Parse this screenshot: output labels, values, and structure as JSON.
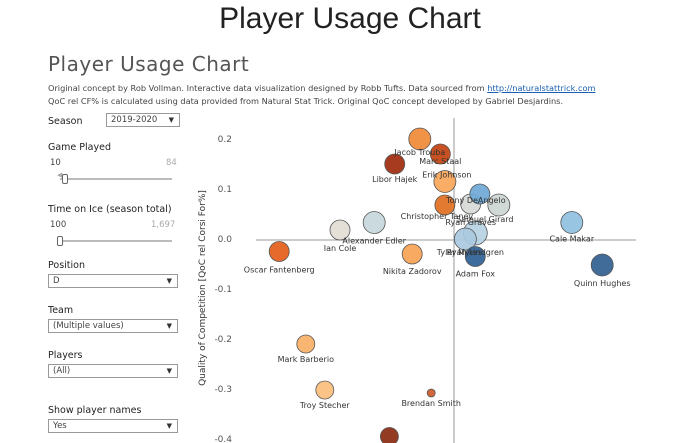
{
  "page_title": "Player Usage Chart",
  "viz_title": "Player Usage Chart",
  "credits": {
    "line1_prefix": "Original concept by Rob Vollman.  Interactive data visualization designed by Robb Tufts.  Data sourced from ",
    "line1_link": "http://naturalstattrick.com",
    "line2": "QoC rel CF% is calculated using data provided from Natural Stat Trick.  Original QoC concept developed by Gabriel Desjardins."
  },
  "controls": {
    "season": {
      "label": "Season",
      "value": "2019-2020"
    },
    "games_played": {
      "label": "Game Played",
      "min_value": "10",
      "max_value": "84"
    },
    "time_on_ice": {
      "label": "Time on Ice (season total)",
      "min_value": "100",
      "max_value": "1,697"
    },
    "position": {
      "label": "Position",
      "value": "D"
    },
    "team": {
      "label": "Team",
      "value": "(Multiple values)"
    },
    "players": {
      "label": "Players",
      "value": "(All)"
    },
    "show_names": {
      "label": "Show player names",
      "value": "Yes"
    }
  },
  "icons": {
    "dropdown": "chevron-down-icon"
  },
  "chart_data": {
    "type": "scatter",
    "ylabel": "Quality of Competition [QoC rel Corsi For%]",
    "ylim": [
      -0.4,
      0.25
    ],
    "yticks": [
      "0.2",
      "0.1",
      "0.0",
      "-0.1",
      "-0.2",
      "-0.3",
      "-0.4"
    ],
    "points": [
      {
        "name": "Jacob Trouba",
        "x": -0.45,
        "y": 0.2,
        "color": "#f08a36",
        "size": 11
      },
      {
        "name": "Libor Hajek",
        "x": -0.78,
        "y": 0.15,
        "color": "#9e2a0d",
        "size": 10
      },
      {
        "name": "Marc Staal",
        "x": -0.18,
        "y": 0.17,
        "color": "#c2420f",
        "size": 10
      },
      {
        "name": "Erik Johnson",
        "x": -0.12,
        "y": 0.115,
        "color": "#f8a65a",
        "size": 11
      },
      {
        "name": "Christopher Tanev",
        "x": -0.12,
        "y": 0.068,
        "color": "#e0701f",
        "size": 10
      },
      {
        "name": "Ryan Graves",
        "x": 0.22,
        "y": 0.07,
        "color": "#d6d9d6",
        "size": 10
      },
      {
        "name": "Tony DeAngelo",
        "x": 0.34,
        "y": 0.09,
        "color": "#6ea8d6",
        "size": 10
      },
      {
        "name": "Samuel Girard",
        "x": 0.59,
        "y": 0.068,
        "color": "#cdd6d2",
        "size": 11
      },
      {
        "name": "Alexander Edler",
        "x": -1.05,
        "y": 0.033,
        "color": "#c7d7db",
        "size": 11
      },
      {
        "name": "Ian Cole",
        "x": -1.5,
        "y": 0.018,
        "color": "#e2ddd4",
        "size": 10
      },
      {
        "name": "Ryan Lindgren",
        "x": 0.28,
        "y": 0.012,
        "color": "#b7d3e3",
        "size": 12
      },
      {
        "name": "Tyler Myers",
        "x": 0.15,
        "y": 0.0,
        "color": "#a9c9df",
        "size": 11
      },
      {
        "name": "Cale Makar",
        "x": 1.55,
        "y": 0.033,
        "color": "#8ec0df",
        "size": 11
      },
      {
        "name": "Oscar Fantenberg",
        "x": -2.3,
        "y": -0.025,
        "color": "#e35d1a",
        "size": 10
      },
      {
        "name": "Nikita Zadorov",
        "x": -0.55,
        "y": -0.03,
        "color": "#f9a355",
        "size": 10
      },
      {
        "name": "Adam Fox",
        "x": 0.28,
        "y": -0.035,
        "color": "#2e5f94",
        "size": 10
      },
      {
        "name": "Quinn Hughes",
        "x": 1.95,
        "y": -0.052,
        "color": "#315f91",
        "size": 11
      },
      {
        "name": "Mark Barberio",
        "x": -1.95,
        "y": -0.21,
        "color": "#f9b066",
        "size": 9
      },
      {
        "name": "Troy Stecher",
        "x": -1.7,
        "y": -0.302,
        "color": "#fbbf7c",
        "size": 9
      },
      {
        "name": "Brendan Smith",
        "x": -0.3,
        "y": -0.308,
        "color": "#cc5a2a",
        "size": 4
      },
      {
        "name": "",
        "x": -0.85,
        "y": -0.395,
        "color": "#8a2a10",
        "size": 9
      }
    ]
  }
}
